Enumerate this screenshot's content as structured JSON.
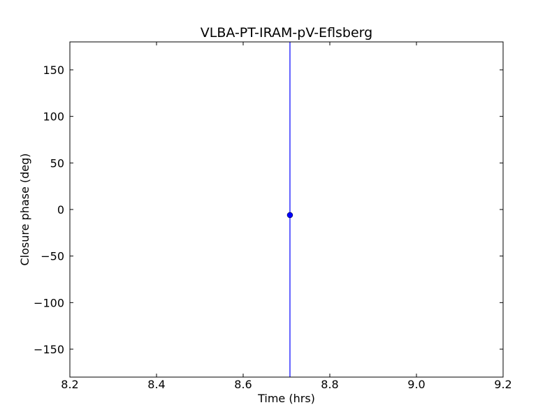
{
  "chart_data": {
    "type": "scatter",
    "title": "VLBA-PT-IRAM-pV-Eflsberg",
    "xlabel": "Time (hrs)",
    "ylabel": "Closure phase (deg)",
    "x": [
      8.708
    ],
    "values": [
      -6
    ],
    "errors": [
      200
    ],
    "color": "#0000ff",
    "xlim": [
      8.2,
      9.2
    ],
    "xticks": [
      8.2,
      8.4,
      8.6,
      8.8,
      {
        "value": 9,
        "label": "9.0"
      },
      9.2
    ],
    "ylim": [
      -180,
      180
    ],
    "yticks": [
      {
        "value": -150,
        "label": "−150"
      },
      {
        "value": -100,
        "label": "−100"
      },
      {
        "value": -50,
        "label": "−50"
      },
      0,
      50,
      100,
      150
    ]
  }
}
